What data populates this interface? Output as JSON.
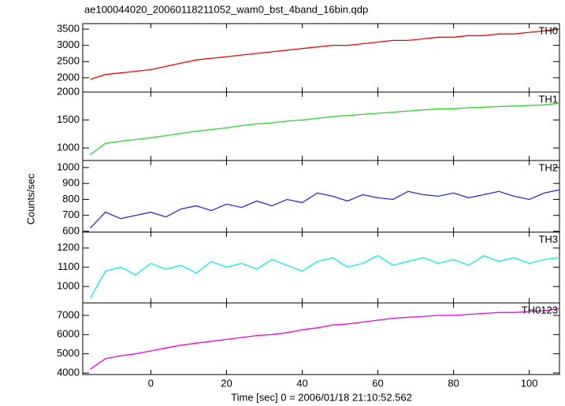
{
  "title": "ae100044020_20060118211052_wam0_bst_4band_16bin.qdp",
  "xlabel": "Time [sec] 0 = 2006/01/18 21:10:52.562",
  "ylabel": "Counts/sec",
  "chart_data": [
    {
      "type": "line",
      "x": [
        -16,
        -12,
        -8,
        -4,
        0,
        4,
        8,
        12,
        16,
        20,
        24,
        28,
        32,
        36,
        40,
        44,
        48,
        52,
        56,
        60,
        64,
        68,
        72,
        76,
        80,
        84,
        88,
        92,
        96,
        100,
        104,
        108
      ],
      "series": [
        {
          "name": "TH0",
          "color": "#ff0000",
          "values": [
            1950,
            2100,
            2150,
            2200,
            2250,
            2350,
            2450,
            2550,
            2600,
            2650,
            2700,
            2750,
            2800,
            2850,
            2900,
            2950,
            3000,
            3000,
            3050,
            3100,
            3150,
            3150,
            3200,
            3250,
            3250,
            3300,
            3300,
            3350,
            3350,
            3400,
            3450,
            3500
          ]
        }
      ],
      "xlim": [
        -18,
        108
      ],
      "ylim": [
        1560,
        3670
      ],
      "yticks": [
        2000,
        2500,
        3000,
        3500
      ]
    },
    {
      "type": "line",
      "x": [
        -16,
        -12,
        -8,
        -4,
        0,
        4,
        8,
        12,
        16,
        20,
        24,
        28,
        32,
        36,
        40,
        44,
        48,
        52,
        56,
        60,
        64,
        68,
        72,
        76,
        80,
        84,
        88,
        92,
        96,
        100,
        104,
        108
      ],
      "series": [
        {
          "name": "TH1",
          "color": "#22dd22",
          "values": [
            880,
            1080,
            1120,
            1150,
            1180,
            1220,
            1260,
            1300,
            1330,
            1360,
            1400,
            1430,
            1450,
            1480,
            1500,
            1530,
            1560,
            1580,
            1600,
            1620,
            1640,
            1660,
            1680,
            1700,
            1700,
            1720,
            1730,
            1740,
            1750,
            1760,
            1770,
            1800
          ]
        }
      ],
      "xlim": [
        -18,
        108
      ],
      "ylim": [
        775,
        2000
      ],
      "yticks": [
        1000,
        1500,
        2000
      ]
    },
    {
      "type": "line",
      "x": [
        -16,
        -12,
        -8,
        -4,
        0,
        4,
        8,
        12,
        16,
        20,
        24,
        28,
        32,
        36,
        40,
        44,
        48,
        52,
        56,
        60,
        64,
        68,
        72,
        76,
        80,
        84,
        88,
        92,
        96,
        100,
        104,
        108
      ],
      "series": [
        {
          "name": "TH2",
          "color": "#2a2ad6",
          "values": [
            620,
            720,
            680,
            700,
            720,
            690,
            740,
            760,
            730,
            770,
            750,
            790,
            760,
            800,
            780,
            840,
            820,
            790,
            830,
            810,
            800,
            850,
            830,
            820,
            840,
            810,
            830,
            850,
            820,
            800,
            840,
            860
          ]
        }
      ],
      "xlim": [
        -18,
        108
      ],
      "ylim": [
        595,
        1044
      ],
      "yticks": [
        600,
        700,
        800,
        900,
        1000
      ]
    },
    {
      "type": "line",
      "x": [
        -16,
        -12,
        -8,
        -4,
        0,
        4,
        8,
        12,
        16,
        20,
        24,
        28,
        32,
        36,
        40,
        44,
        48,
        52,
        56,
        60,
        64,
        68,
        72,
        76,
        80,
        84,
        88,
        92,
        96,
        100,
        104,
        108
      ],
      "series": [
        {
          "name": "TH3",
          "color": "#00eeee",
          "values": [
            940,
            1080,
            1100,
            1060,
            1120,
            1090,
            1110,
            1070,
            1130,
            1100,
            1120,
            1090,
            1140,
            1110,
            1080,
            1130,
            1150,
            1100,
            1120,
            1160,
            1110,
            1130,
            1150,
            1120,
            1140,
            1110,
            1160,
            1130,
            1150,
            1120,
            1140,
            1150
          ]
        }
      ],
      "xlim": [
        -18,
        108
      ],
      "ylim": [
        915,
        1282
      ],
      "yticks": [
        1000,
        1100,
        1200
      ]
    },
    {
      "type": "line",
      "x": [
        -16,
        -12,
        -8,
        -4,
        0,
        4,
        8,
        12,
        16,
        20,
        24,
        28,
        32,
        36,
        40,
        44,
        48,
        52,
        56,
        60,
        64,
        68,
        72,
        76,
        80,
        84,
        88,
        92,
        96,
        100,
        104,
        108
      ],
      "series": [
        {
          "name": "TH0123",
          "color": "#ee00ee",
          "values": [
            4200,
            4750,
            4900,
            5000,
            5150,
            5300,
            5450,
            5550,
            5650,
            5750,
            5850,
            5950,
            6000,
            6100,
            6250,
            6350,
            6500,
            6550,
            6650,
            6750,
            6850,
            6900,
            6950,
            7000,
            7000,
            7050,
            7100,
            7150,
            7150,
            7200,
            7250,
            7350
          ]
        }
      ],
      "xlim": [
        -18,
        108
      ],
      "ylim": [
        3920,
        7650
      ],
      "yticks": [
        4000,
        5000,
        6000,
        7000
      ],
      "xticks": [
        0,
        20,
        40,
        60,
        80,
        100
      ]
    }
  ]
}
